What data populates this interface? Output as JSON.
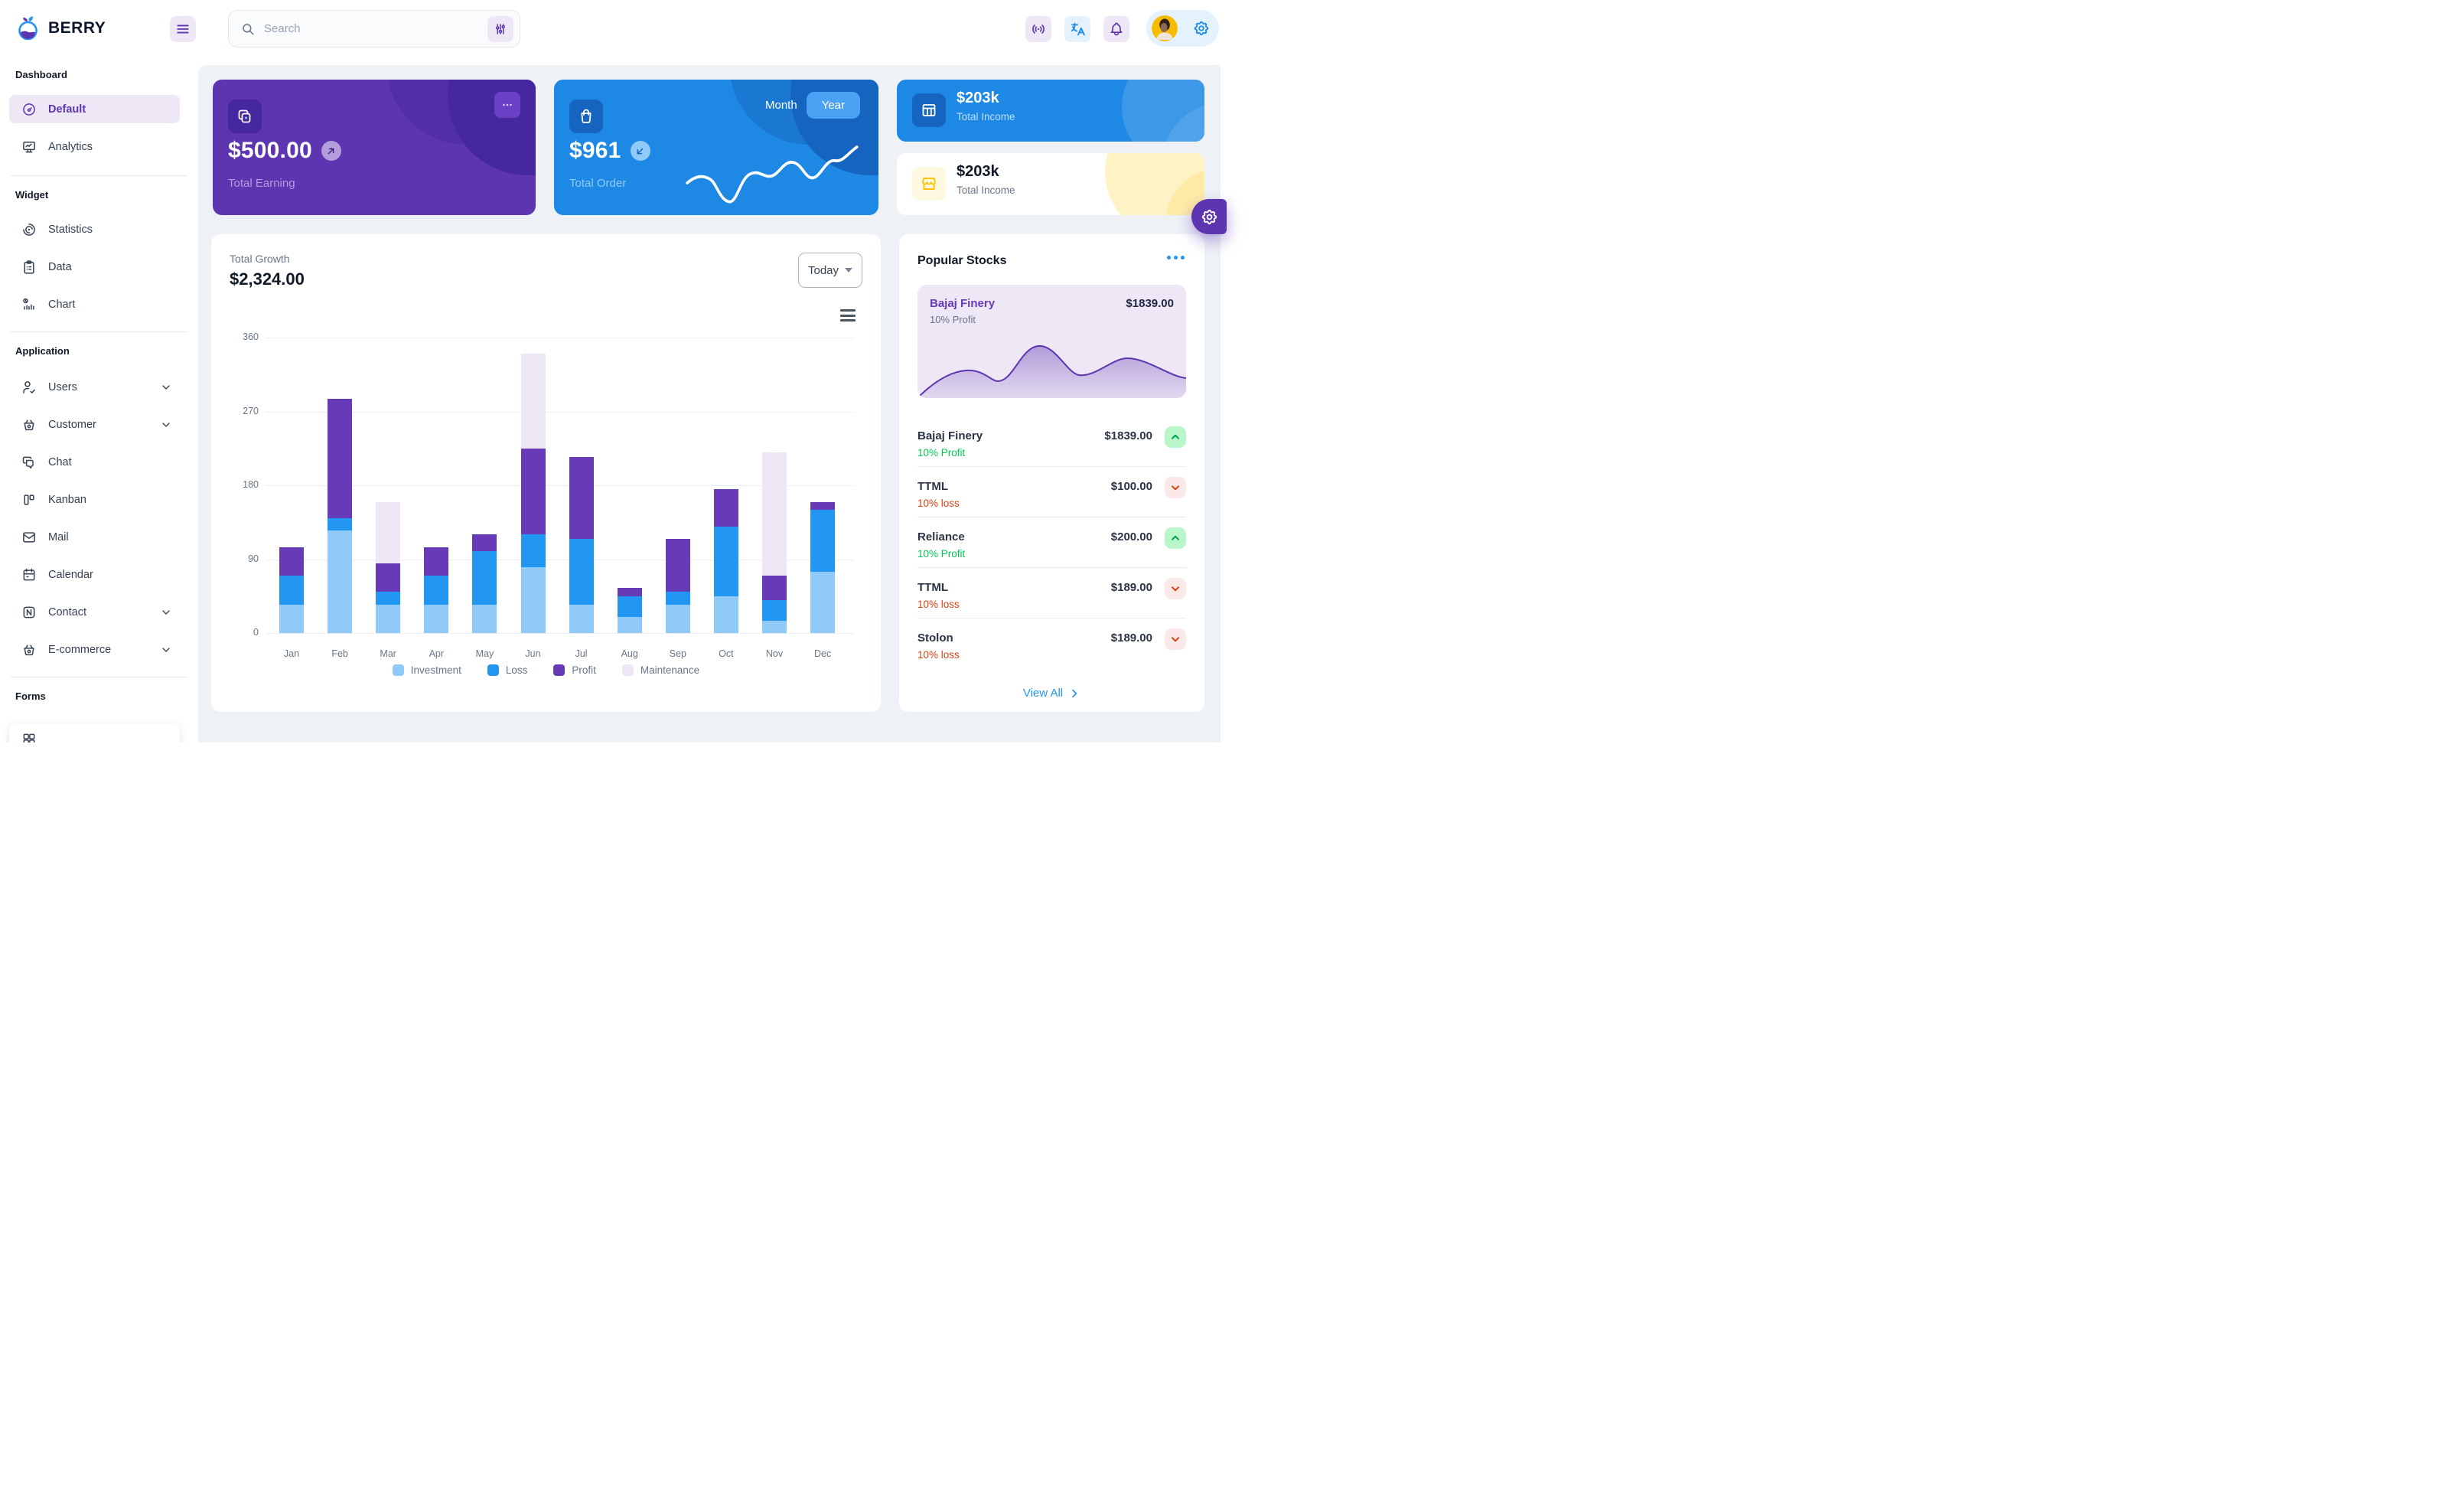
{
  "brand": {
    "name": "BERRY"
  },
  "header": {
    "search_placeholder": "Search"
  },
  "sidebar": {
    "sections": [
      {
        "title": "Dashboard",
        "items": [
          {
            "label": "Default",
            "icon": "gauge",
            "active": true
          },
          {
            "label": "Analytics",
            "icon": "device-analytics"
          }
        ]
      },
      {
        "title": "Widget",
        "items": [
          {
            "label": "Statistics",
            "icon": "chart-arcs"
          },
          {
            "label": "Data",
            "icon": "clipboard"
          },
          {
            "label": "Chart",
            "icon": "chart-histogram"
          }
        ]
      },
      {
        "title": "Application",
        "items": [
          {
            "label": "Users",
            "icon": "user-check",
            "chevron": true
          },
          {
            "label": "Customer",
            "icon": "basket",
            "chevron": true
          },
          {
            "label": "Chat",
            "icon": "messages"
          },
          {
            "label": "Kanban",
            "icon": "kanban"
          },
          {
            "label": "Mail",
            "icon": "mail"
          },
          {
            "label": "Calendar",
            "icon": "calendar"
          },
          {
            "label": "Contact",
            "icon": "contact",
            "chevron": true
          },
          {
            "label": "E-commerce",
            "icon": "basket",
            "chevron": true
          }
        ]
      },
      {
        "title": "Forms",
        "items": []
      }
    ]
  },
  "cards": {
    "earning": {
      "value": "$500.00",
      "label": "Total Earning"
    },
    "order": {
      "value": "$961",
      "label": "Total Order",
      "toggle_month": "Month",
      "toggle_year": "Year"
    },
    "income_primary": {
      "value": "$203k",
      "label": "Total Income"
    },
    "income_light": {
      "value": "$203k",
      "label": "Total Income"
    }
  },
  "growth": {
    "title": "Total Growth",
    "value": "$2,324.00",
    "range_label": "Today",
    "chart_data": {
      "type": "bar",
      "stacked": true,
      "categories": [
        "Jan",
        "Feb",
        "Mar",
        "Apr",
        "May",
        "Jun",
        "Jul",
        "Aug",
        "Sep",
        "Oct",
        "Nov",
        "Dec"
      ],
      "series": [
        {
          "name": "Investment",
          "color": "#90caf9",
          "values": [
            35,
            125,
            35,
            35,
            35,
            80,
            35,
            20,
            35,
            45,
            15,
            75
          ]
        },
        {
          "name": "Loss",
          "color": "#2196f3",
          "values": [
            35,
            15,
            15,
            35,
            65,
            40,
            80,
            25,
            15,
            85,
            25,
            75
          ]
        },
        {
          "name": "Profit",
          "color": "#673ab7",
          "values": [
            35,
            145,
            35,
            35,
            20,
            105,
            100,
            10,
            65,
            45,
            30,
            10
          ]
        },
        {
          "name": "Maintenance",
          "color": "#ede7f6",
          "values": [
            0,
            0,
            75,
            0,
            0,
            115,
            0,
            0,
            0,
            0,
            150,
            0
          ]
        }
      ],
      "ylim": [
        0,
        360
      ],
      "yticks": [
        0,
        90,
        180,
        270,
        360
      ],
      "grid": true,
      "legend_position": "bottom"
    }
  },
  "stocks": {
    "title": "Popular Stocks",
    "featured": {
      "name": "Bajaj Finery",
      "price": "$1839.00",
      "sub": "10% Profit"
    },
    "rows": [
      {
        "name": "Bajaj Finery",
        "price": "$1839.00",
        "sub": "10% Profit",
        "trend": "up"
      },
      {
        "name": "TTML",
        "price": "$100.00",
        "sub": "10% loss",
        "trend": "down"
      },
      {
        "name": "Reliance",
        "price": "$200.00",
        "sub": "10% Profit",
        "trend": "up"
      },
      {
        "name": "TTML",
        "price": "$189.00",
        "sub": "10% loss",
        "trend": "down"
      },
      {
        "name": "Stolon",
        "price": "$189.00",
        "sub": "10% loss",
        "trend": "down"
      }
    ],
    "view_all": "View All"
  },
  "colors": {
    "purple_main": "#5e35b1",
    "purple_dark": "#4527a0",
    "purple_light": "#ede7f6",
    "blue_main": "#1e88e5",
    "blue_dark": "#1565c0",
    "blue_light": "#e3f2fd",
    "success": "#00c853",
    "error": "#d84315",
    "bg": "#eef2f6",
    "link": "#2196f3"
  }
}
